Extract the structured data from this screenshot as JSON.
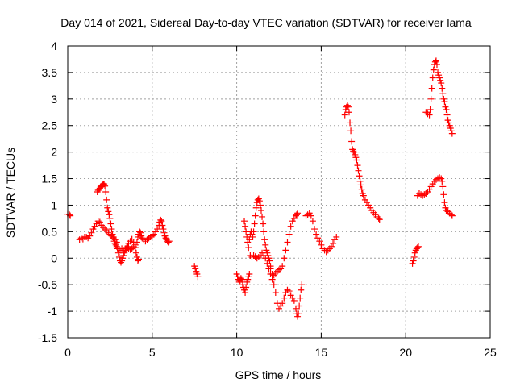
{
  "chart_data": {
    "type": "scatter",
    "title": "Day 014 of 2021, Sidereal Day-to-day VTEC variation (SDTVAR) for receiver lama",
    "xlabel": "GPS time / hours",
    "ylabel": "SDTVAR / TECUs",
    "xlim": [
      0,
      25
    ],
    "ylim": [
      -1.5,
      4
    ],
    "xticks": [
      0,
      5,
      10,
      15,
      20,
      25
    ],
    "yticks": [
      -1.5,
      -1,
      -0.5,
      0,
      0.5,
      1,
      1.5,
      2,
      2.5,
      3,
      3.5,
      4
    ],
    "grid": true,
    "marker": "+",
    "color": "#ff0000",
    "segments": [
      [
        [
          0.0,
          0.83
        ],
        [
          0.1,
          0.82
        ],
        [
          0.15,
          0.8
        ]
      ],
      [
        [
          0.7,
          0.35
        ],
        [
          0.8,
          0.38
        ],
        [
          0.9,
          0.36
        ],
        [
          1.0,
          0.4
        ],
        [
          1.1,
          0.4
        ],
        [
          1.2,
          0.38
        ],
        [
          1.3,
          0.42
        ],
        [
          1.4,
          0.48
        ],
        [
          1.5,
          0.55
        ],
        [
          1.6,
          0.6
        ],
        [
          1.7,
          0.65
        ],
        [
          1.8,
          0.7
        ],
        [
          1.9,
          0.68
        ],
        [
          2.0,
          0.62
        ],
        [
          2.1,
          0.58
        ],
        [
          2.2,
          0.55
        ],
        [
          2.3,
          0.52
        ],
        [
          2.4,
          0.48
        ],
        [
          2.5,
          0.45
        ],
        [
          2.6,
          0.42
        ],
        [
          2.7,
          0.4
        ],
        [
          2.8,
          0.35
        ],
        [
          2.9,
          0.3
        ]
      ],
      [
        [
          1.75,
          1.25
        ],
        [
          1.8,
          1.28
        ],
        [
          1.85,
          1.3
        ],
        [
          1.9,
          1.32
        ],
        [
          1.95,
          1.35
        ],
        [
          2.0,
          1.36
        ],
        [
          2.05,
          1.38
        ],
        [
          2.1,
          1.39
        ],
        [
          2.15,
          1.4
        ],
        [
          2.2,
          1.36
        ],
        [
          2.25,
          1.25
        ],
        [
          2.3,
          1.1
        ],
        [
          2.35,
          0.95
        ],
        [
          2.4,
          0.88
        ],
        [
          2.45,
          0.82
        ],
        [
          2.5,
          0.75
        ],
        [
          2.55,
          0.65
        ],
        [
          2.6,
          0.55
        ],
        [
          2.65,
          0.45
        ],
        [
          2.7,
          0.38
        ],
        [
          2.75,
          0.32
        ],
        [
          2.8,
          0.28
        ],
        [
          2.85,
          0.25
        ],
        [
          2.9,
          0.22
        ]
      ],
      [
        [
          2.95,
          0.18
        ],
        [
          3.0,
          0.1
        ],
        [
          3.05,
          0.02
        ],
        [
          3.1,
          -0.05
        ],
        [
          3.15,
          -0.08
        ],
        [
          3.2,
          -0.05
        ],
        [
          3.25,
          0.0
        ],
        [
          3.3,
          0.05
        ],
        [
          3.35,
          0.1
        ],
        [
          3.4,
          0.15
        ],
        [
          3.45,
          0.18
        ],
        [
          3.5,
          0.2
        ],
        [
          3.55,
          0.22
        ],
        [
          3.6,
          0.28
        ],
        [
          3.7,
          0.32
        ],
        [
          3.8,
          0.36
        ],
        [
          3.9,
          0.3
        ],
        [
          4.0,
          0.2
        ],
        [
          4.05,
          0.1
        ],
        [
          4.1,
          0.02
        ],
        [
          4.15,
          -0.05
        ],
        [
          4.2,
          -0.02
        ]
      ],
      [
        [
          3.1,
          0.15
        ],
        [
          3.2,
          0.18
        ],
        [
          3.3,
          0.15
        ],
        [
          3.4,
          0.18
        ],
        [
          3.5,
          0.2
        ],
        [
          3.6,
          0.18
        ],
        [
          3.7,
          0.16
        ],
        [
          3.8,
          0.18
        ],
        [
          3.9,
          0.22
        ],
        [
          4.0,
          0.25
        ],
        [
          4.1,
          0.3
        ],
        [
          4.15,
          0.4
        ],
        [
          4.2,
          0.45
        ],
        [
          4.25,
          0.5
        ],
        [
          4.3,
          0.48
        ],
        [
          4.35,
          0.42
        ],
        [
          4.4,
          0.38
        ],
        [
          4.5,
          0.35
        ],
        [
          4.6,
          0.32
        ],
        [
          4.7,
          0.35
        ],
        [
          4.8,
          0.38
        ],
        [
          4.9,
          0.4
        ],
        [
          5.0,
          0.42
        ],
        [
          5.1,
          0.45
        ],
        [
          5.2,
          0.5
        ],
        [
          5.3,
          0.55
        ],
        [
          5.4,
          0.62
        ],
        [
          5.45,
          0.68
        ],
        [
          5.5,
          0.72
        ],
        [
          5.55,
          0.7
        ],
        [
          5.6,
          0.62
        ],
        [
          5.65,
          0.55
        ],
        [
          5.7,
          0.48
        ],
        [
          5.75,
          0.42
        ],
        [
          5.8,
          0.38
        ],
        [
          5.85,
          0.35
        ],
        [
          5.9,
          0.32
        ],
        [
          5.95,
          0.3
        ],
        [
          6.0,
          0.32
        ]
      ],
      [
        [
          7.5,
          -0.15
        ],
        [
          7.55,
          -0.2
        ],
        [
          7.6,
          -0.25
        ],
        [
          7.65,
          -0.3
        ],
        [
          7.7,
          -0.35
        ]
      ],
      [
        [
          10.0,
          -0.3
        ],
        [
          10.05,
          -0.35
        ],
        [
          10.1,
          -0.4
        ],
        [
          10.15,
          -0.45
        ],
        [
          10.2,
          -0.42
        ],
        [
          10.25,
          -0.38
        ],
        [
          10.3,
          -0.4
        ],
        [
          10.35,
          -0.5
        ],
        [
          10.4,
          -0.55
        ],
        [
          10.45,
          -0.6
        ],
        [
          10.5,
          -0.65
        ],
        [
          10.55,
          -0.55
        ],
        [
          10.6,
          -0.45
        ],
        [
          10.65,
          -0.4
        ],
        [
          10.7,
          -0.35
        ],
        [
          10.75,
          -0.3
        ]
      ],
      [
        [
          10.45,
          0.7
        ],
        [
          10.5,
          0.6
        ],
        [
          10.55,
          0.5
        ],
        [
          10.6,
          0.4
        ],
        [
          10.65,
          0.3
        ],
        [
          10.7,
          0.2
        ],
        [
          10.75,
          0.35
        ],
        [
          10.8,
          0.45
        ],
        [
          10.85,
          0.5
        ],
        [
          10.9,
          0.45
        ],
        [
          10.95,
          0.4
        ],
        [
          11.0,
          0.5
        ],
        [
          11.05,
          0.65
        ],
        [
          11.1,
          0.8
        ],
        [
          11.15,
          0.95
        ],
        [
          11.2,
          1.05
        ],
        [
          11.25,
          1.1
        ],
        [
          11.3,
          1.12
        ],
        [
          11.35,
          1.08
        ],
        [
          11.4,
          1.0
        ],
        [
          11.45,
          0.9
        ],
        [
          11.5,
          0.78
        ],
        [
          11.55,
          0.65
        ],
        [
          11.6,
          0.5
        ],
        [
          11.65,
          0.35
        ],
        [
          11.7,
          0.25
        ],
        [
          11.75,
          0.15
        ],
        [
          11.8,
          0.1
        ],
        [
          11.85,
          0.05
        ],
        [
          11.9,
          0.0
        ],
        [
          11.95,
          -0.05
        ],
        [
          12.0,
          -0.15
        ]
      ],
      [
        [
          10.8,
          0.05
        ],
        [
          10.9,
          0.02
        ],
        [
          11.0,
          0.05
        ],
        [
          11.1,
          0.03
        ],
        [
          11.2,
          0.0
        ],
        [
          11.3,
          0.02
        ],
        [
          11.4,
          0.05
        ],
        [
          11.5,
          0.1
        ],
        [
          11.6,
          0.05
        ],
        [
          11.7,
          0.0
        ],
        [
          11.8,
          -0.1
        ],
        [
          11.9,
          -0.2
        ],
        [
          12.0,
          -0.3
        ],
        [
          12.1,
          -0.4
        ],
        [
          12.2,
          -0.5
        ],
        [
          12.3,
          -0.65
        ],
        [
          12.4,
          -0.85
        ],
        [
          12.5,
          -0.95
        ],
        [
          12.6,
          -0.9
        ],
        [
          12.7,
          -0.85
        ],
        [
          12.8,
          -0.75
        ],
        [
          12.9,
          -0.65
        ],
        [
          13.0,
          -0.6
        ],
        [
          13.1,
          -0.62
        ],
        [
          13.2,
          -0.7
        ],
        [
          13.3,
          -0.75
        ],
        [
          13.4,
          -0.8
        ],
        [
          13.5,
          -0.95
        ],
        [
          13.55,
          -1.05
        ],
        [
          13.6,
          -1.1
        ],
        [
          13.65,
          -1.05
        ],
        [
          13.7,
          -0.9
        ],
        [
          13.75,
          -0.75
        ],
        [
          13.8,
          -0.6
        ],
        [
          13.85,
          -0.5
        ]
      ],
      [
        [
          12.0,
          -0.2
        ],
        [
          12.1,
          -0.3
        ],
        [
          12.2,
          -0.32
        ],
        [
          12.3,
          -0.28
        ],
        [
          12.4,
          -0.25
        ],
        [
          12.5,
          -0.22
        ],
        [
          12.6,
          -0.2
        ],
        [
          12.7,
          -0.15
        ],
        [
          12.8,
          0.0
        ],
        [
          12.9,
          0.15
        ],
        [
          13.0,
          0.3
        ],
        [
          13.1,
          0.45
        ],
        [
          13.2,
          0.6
        ],
        [
          13.3,
          0.7
        ],
        [
          13.4,
          0.75
        ],
        [
          13.5,
          0.8
        ],
        [
          13.55,
          0.82
        ],
        [
          13.6,
          0.85
        ]
      ],
      [
        [
          14.1,
          0.8
        ],
        [
          14.2,
          0.82
        ],
        [
          14.3,
          0.85
        ],
        [
          14.4,
          0.8
        ],
        [
          14.5,
          0.7
        ],
        [
          14.6,
          0.55
        ],
        [
          14.7,
          0.45
        ],
        [
          14.8,
          0.38
        ],
        [
          14.9,
          0.32
        ],
        [
          15.0,
          0.25
        ],
        [
          15.1,
          0.18
        ],
        [
          15.2,
          0.15
        ],
        [
          15.3,
          0.12
        ],
        [
          15.4,
          0.15
        ],
        [
          15.5,
          0.18
        ],
        [
          15.6,
          0.22
        ],
        [
          15.7,
          0.28
        ],
        [
          15.8,
          0.35
        ],
        [
          15.9,
          0.4
        ]
      ],
      [
        [
          16.4,
          2.7
        ],
        [
          16.45,
          2.8
        ],
        [
          16.5,
          2.85
        ],
        [
          16.55,
          2.88
        ],
        [
          16.6,
          2.85
        ],
        [
          16.65,
          2.75
        ],
        [
          16.7,
          2.55
        ],
        [
          16.75,
          2.4
        ],
        [
          16.8,
          2.2
        ],
        [
          16.85,
          2.05
        ],
        [
          16.9,
          2.02
        ],
        [
          16.95,
          2.0
        ],
        [
          17.0,
          1.95
        ],
        [
          17.05,
          1.9
        ],
        [
          17.1,
          1.85
        ],
        [
          17.15,
          1.75
        ],
        [
          17.2,
          1.65
        ],
        [
          17.25,
          1.55
        ],
        [
          17.3,
          1.45
        ],
        [
          17.35,
          1.38
        ],
        [
          17.4,
          1.3
        ],
        [
          17.45,
          1.22
        ],
        [
          17.5,
          1.18
        ],
        [
          17.6,
          1.1
        ],
        [
          17.7,
          1.05
        ],
        [
          17.8,
          1.0
        ],
        [
          17.9,
          0.95
        ],
        [
          18.0,
          0.9
        ],
        [
          18.1,
          0.86
        ],
        [
          18.2,
          0.82
        ],
        [
          18.3,
          0.78
        ],
        [
          18.4,
          0.75
        ],
        [
          18.45,
          0.73
        ]
      ],
      [
        [
          20.4,
          -0.1
        ],
        [
          20.45,
          -0.05
        ],
        [
          20.5,
          0.02
        ],
        [
          20.55,
          0.1
        ],
        [
          20.6,
          0.15
        ],
        [
          20.65,
          0.18
        ],
        [
          20.7,
          0.2
        ],
        [
          20.75,
          0.22
        ]
      ],
      [
        [
          20.7,
          1.18
        ],
        [
          20.8,
          1.22
        ],
        [
          20.9,
          1.2
        ],
        [
          21.0,
          1.18
        ],
        [
          21.1,
          1.2
        ],
        [
          21.2,
          1.22
        ],
        [
          21.3,
          1.25
        ],
        [
          21.4,
          1.3
        ],
        [
          21.5,
          1.35
        ],
        [
          21.6,
          1.4
        ],
        [
          21.7,
          1.45
        ],
        [
          21.8,
          1.48
        ],
        [
          21.9,
          1.5
        ],
        [
          22.0,
          1.52
        ],
        [
          22.1,
          1.5
        ],
        [
          22.15,
          1.45
        ],
        [
          22.2,
          1.35
        ],
        [
          22.25,
          1.2
        ],
        [
          22.3,
          1.05
        ],
        [
          22.35,
          0.95
        ],
        [
          22.4,
          0.9
        ],
        [
          22.5,
          0.88
        ],
        [
          22.6,
          0.85
        ],
        [
          22.7,
          0.82
        ],
        [
          22.75,
          0.8
        ]
      ],
      [
        [
          21.2,
          2.75
        ],
        [
          21.3,
          2.72
        ],
        [
          21.4,
          2.7
        ],
        [
          21.45,
          2.8
        ],
        [
          21.5,
          3.0
        ],
        [
          21.55,
          3.2
        ],
        [
          21.6,
          3.4
        ],
        [
          21.65,
          3.55
        ],
        [
          21.7,
          3.65
        ],
        [
          21.75,
          3.7
        ],
        [
          21.8,
          3.72
        ],
        [
          21.85,
          3.65
        ],
        [
          21.9,
          3.5
        ],
        [
          21.95,
          3.45
        ],
        [
          22.0,
          3.4
        ],
        [
          22.05,
          3.35
        ],
        [
          22.1,
          3.3
        ],
        [
          22.15,
          3.2
        ],
        [
          22.2,
          3.1
        ],
        [
          22.25,
          3.0
        ],
        [
          22.3,
          2.95
        ],
        [
          22.35,
          2.85
        ],
        [
          22.4,
          2.8
        ],
        [
          22.45,
          2.7
        ],
        [
          22.5,
          2.6
        ],
        [
          22.55,
          2.55
        ],
        [
          22.6,
          2.5
        ],
        [
          22.65,
          2.45
        ],
        [
          22.7,
          2.4
        ],
        [
          22.75,
          2.35
        ]
      ]
    ]
  }
}
